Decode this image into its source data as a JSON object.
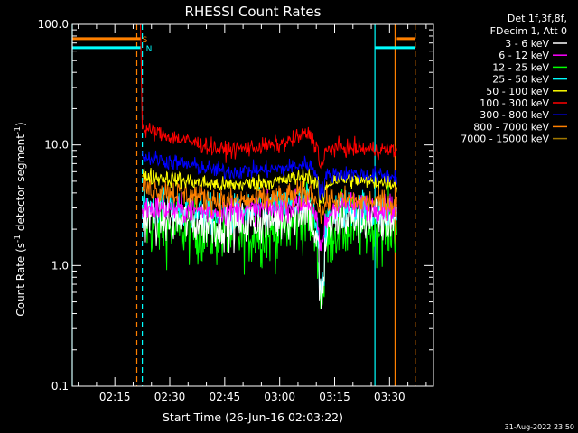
{
  "chart_data": {
    "type": "line",
    "title": "RHESSI Count Rates",
    "xlabel": "Start Time (26-Jun-16 02:03:22)",
    "ylabel_parts": [
      "Count Rate (s",
      "-1",
      " detector segment",
      "-1",
      ")"
    ],
    "y_scale": "log",
    "ylim": [
      0.1,
      100.0
    ],
    "y_ticks": [
      {
        "value": 0.1,
        "label": "0.1"
      },
      {
        "value": 1.0,
        "label": "1.0"
      },
      {
        "value": 10.0,
        "label": "10.0"
      },
      {
        "value": 100.0,
        "label": "100.0"
      }
    ],
    "xlim": [
      "02:03:22",
      "03:42:00"
    ],
    "x_ticks": [
      "02:15",
      "02:30",
      "02:45",
      "03:00",
      "03:15",
      "03:30"
    ],
    "grid": false,
    "legend_placement": "top-right outside",
    "legend_header": [
      "Det 1f,3f,8f,",
      "FDecim 1, Att 0"
    ],
    "data_window": [
      "02:22:00",
      "03:32:00"
    ],
    "data_gap": [
      "03:10:40",
      "03:12:20"
    ],
    "series": [
      {
        "name": "3 - 6 keV",
        "color": "#ffffff",
        "profile": [
          0,
          2.5,
          2.2,
          2.4,
          3.0,
          1.2,
          2.5,
          2.3
        ],
        "noise": 0.14
      },
      {
        "name": "6 - 12 keV",
        "color": "#ff00ff",
        "profile": [
          0,
          3.0,
          2.8,
          3.0,
          3.4,
          1.8,
          3.2,
          3.0
        ],
        "noise": 0.08
      },
      {
        "name": "12 - 25 keV",
        "color": "#00ff00",
        "profile": [
          0,
          2.2,
          1.8,
          1.9,
          2.6,
          1.3,
          2.0,
          2.1
        ],
        "noise": 0.14
      },
      {
        "name": "25 - 50 keV",
        "color": "#00ffff",
        "profile": [
          0,
          3.1,
          2.6,
          2.9,
          3.4,
          1.6,
          3.0,
          2.8
        ],
        "noise": 0.12
      },
      {
        "name": "50 - 100 keV",
        "color": "#ffff00",
        "profile": [
          0,
          5.6,
          4.6,
          5.0,
          5.6,
          4.2,
          5.2,
          4.8
        ],
        "noise": 0.05
      },
      {
        "name": "100 - 300 keV",
        "color": "#ff0000",
        "profile": [
          100,
          13.5,
          9.0,
          10.0,
          12.5,
          8.5,
          9.5,
          9.0
        ],
        "noise": 0.05
      },
      {
        "name": "300 - 800 keV",
        "color": "#0000ff",
        "profile": [
          0,
          8.0,
          6.0,
          6.3,
          7.0,
          5.2,
          5.8,
          5.5
        ],
        "noise": 0.05
      },
      {
        "name": "800 - 7000 keV",
        "color": "#ff8000",
        "profile": [
          0,
          4.5,
          3.4,
          3.6,
          4.0,
          3.4,
          3.5,
          3.3
        ],
        "noise": 0.08
      },
      {
        "name": "7000 - 15000 keV",
        "color": "#a07800",
        "profile": [
          0,
          0,
          0,
          0,
          0,
          0,
          0,
          0
        ],
        "noise": 0.0
      }
    ],
    "profile_times": [
      "02:22:00",
      "02:22:30",
      "02:45:00",
      "03:00:00",
      "03:08:00",
      "03:11:00",
      "03:15:00",
      "03:32:00"
    ],
    "flags": [
      {
        "label": "S",
        "color": "#ff8000",
        "value": 76,
        "segments": [
          [
            "02:03:22",
            "02:22:00"
          ],
          [
            "03:32:00",
            "03:37:00"
          ]
        ]
      },
      {
        "label": "N",
        "color": "#00ffff",
        "value": 64,
        "segments": [
          [
            "02:03:22",
            "02:22:00"
          ],
          [
            "03:26:00",
            "03:37:00"
          ]
        ]
      }
    ],
    "markers": [
      {
        "time": "02:03:22",
        "color": "#00ffff",
        "style": "solid"
      },
      {
        "time": "02:21:00",
        "color": "#ff8000",
        "style": "dashed"
      },
      {
        "time": "02:22:30",
        "color": "#00ffff",
        "style": "dashed"
      },
      {
        "time": "03:26:00",
        "color": "#00ffff",
        "style": "solid"
      },
      {
        "time": "03:31:30",
        "color": "#ff8000",
        "style": "solid"
      },
      {
        "time": "03:37:00",
        "color": "#ff8000",
        "style": "dashed"
      }
    ]
  },
  "footer_timestamp": "31-Aug-2022 23:50"
}
